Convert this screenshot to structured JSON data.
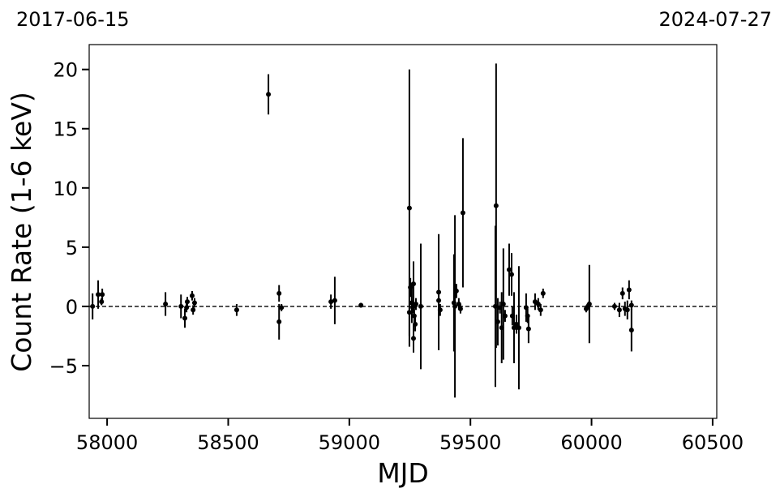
{
  "chart_data": {
    "type": "errorbar",
    "annotations": [
      "2017-06-15",
      "2024-07-27"
    ],
    "xlabel": "MJD",
    "ylabel": "Count Rate (1-6 keV)",
    "xlim": [
      57926,
      60517
    ],
    "ylim": [
      -9.45,
      22.1
    ],
    "xticks": [
      58000,
      58500,
      59000,
      59500,
      60000,
      60500
    ],
    "yticks": [
      {
        "value": -5,
        "label": "−5"
      },
      0,
      5,
      10,
      15,
      20
    ],
    "reference_line": 0,
    "color": "#000000",
    "series": [
      {
        "name": "Count Rate",
        "x": [
          57940,
          57963,
          57980,
          57977,
          58241,
          58305,
          58321,
          58328,
          58331,
          58351,
          58355,
          58361,
          58535,
          58666,
          58710,
          58710,
          58720,
          58924,
          58940,
          59048,
          59248,
          59248,
          59252,
          59258,
          59262,
          59265,
          59268,
          59272,
          59265,
          59275,
          59295,
          59369,
          59369,
          59375,
          59432,
          59436,
          59442,
          59452,
          59459,
          59469,
          59606,
          59603,
          59613,
          59622,
          59629,
          59636,
          59643,
          59660,
          59670,
          59673,
          59680,
          59690,
          59700,
          59730,
          59736,
          59740,
          59767,
          59780,
          59790,
          59800,
          59978,
          59988,
          59991,
          60095,
          60115,
          60128,
          60138,
          60148,
          60155,
          60165,
          60165
        ],
        "values": [
          0,
          1.0,
          1.0,
          0.4,
          0.2,
          0,
          -1.0,
          -0.1,
          0.4,
          0.9,
          -0.3,
          0.3,
          -0.3,
          17.9,
          1.1,
          -1.3,
          -0.1,
          0.4,
          0.5,
          0.1,
          8.3,
          -0.5,
          1.6,
          0.3,
          -0.1,
          1.9,
          -0.8,
          -1.5,
          -2.7,
          0.2,
          0,
          1.2,
          0.5,
          -0.3,
          0.3,
          0,
          1.3,
          0.2,
          -0.2,
          7.9,
          8.5,
          0,
          -1.3,
          -0.1,
          -1.8,
          0.2,
          -0.8,
          3.1,
          2.7,
          -0.8,
          -1.8,
          -1.5,
          -1.8,
          -0.1,
          -0.8,
          -1.9,
          0.4,
          0.2,
          -0.3,
          1.1,
          -0.2,
          0.1,
          0.2,
          0,
          -0.3,
          1.1,
          -0.2,
          -0.3,
          1.4,
          0.1,
          -2.0
        ],
        "errors": [
          1.1,
          1.2,
          0.5,
          0.3,
          1.0,
          1.0,
          0.8,
          0.4,
          0.4,
          0.4,
          0.4,
          0.4,
          0.5,
          1.7,
          0.7,
          1.5,
          0.3,
          0.6,
          2.0,
          0.2,
          11.7,
          2.0,
          0.8,
          1.7,
          0.5,
          1.9,
          0.6,
          0.6,
          1.2,
          0.5,
          5.3,
          4.9,
          0.5,
          0.5,
          4.1,
          7.7,
          0.6,
          0.5,
          0.4,
          6.3,
          12.0,
          6.8,
          2.0,
          0.5,
          3.0,
          4.7,
          0.5,
          2.2,
          1.8,
          0.8,
          3.0,
          0.8,
          5.2,
          1.2,
          0.6,
          1.2,
          0.7,
          0.5,
          0.5,
          0.4,
          0.3,
          0.3,
          3.3,
          0.3,
          0.6,
          0.5,
          0.6,
          0.8,
          0.8,
          0.4,
          1.8
        ]
      }
    ]
  }
}
